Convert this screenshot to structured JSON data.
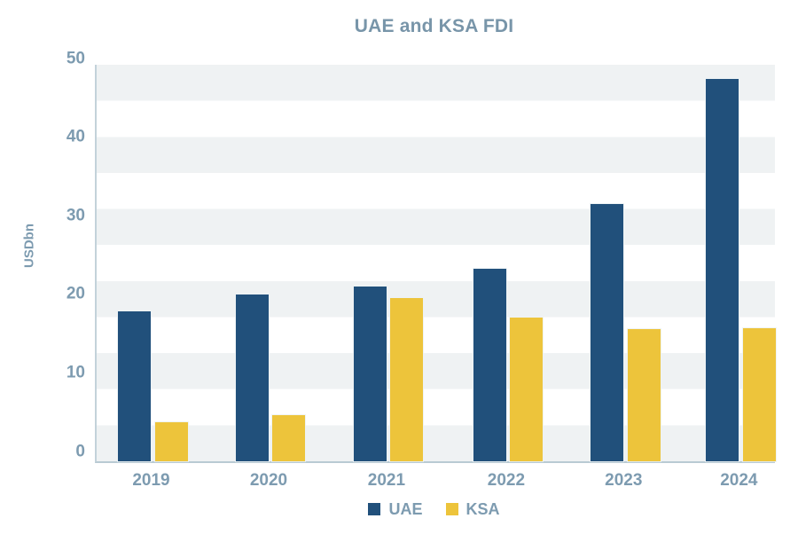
{
  "chart_data": {
    "type": "bar",
    "title": "UAE and KSA FDI",
    "ylabel": "USDbn",
    "xlabel": "",
    "categories": [
      "2019",
      "2020",
      "2021",
      "2022",
      "2023",
      "2024"
    ],
    "series": [
      {
        "name": "UAE",
        "color": "#21507b",
        "values": [
          17.8,
          19.9,
          20.9,
          23.2,
          31.5,
          47.4
        ]
      },
      {
        "name": "KSA",
        "color": "#edc43b",
        "values": [
          3.7,
          4.6,
          19.5,
          17.0,
          15.5,
          15.6
        ]
      }
    ],
    "ylim": [
      0,
      50
    ],
    "yticks": [
      0,
      10,
      20,
      30,
      40,
      50
    ],
    "legend_position": "bottom-center",
    "grid": "horizontal-stripes",
    "colors": {
      "bar_uae": "#21507b",
      "bar_ksa": "#edc43b",
      "text_slate": "#7d9bb0",
      "title_slate": "#7895a9",
      "stripe_grey": "#eff2f3",
      "axis_line": "#b9cad3"
    }
  }
}
